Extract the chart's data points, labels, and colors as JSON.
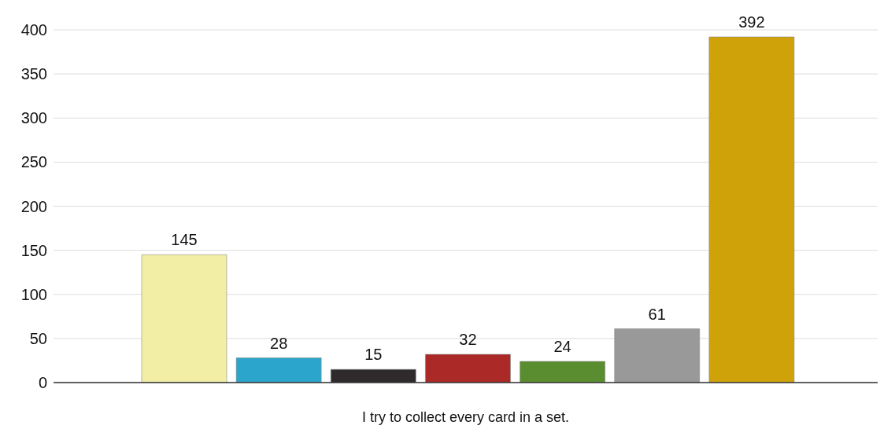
{
  "chart_data": {
    "type": "bar",
    "xlabel": "I try to collect every card in a set.",
    "categories": [
      null,
      null,
      null,
      null,
      null,
      null,
      null
    ],
    "values": [
      145,
      28,
      15,
      32,
      24,
      61,
      392
    ],
    "colors": [
      "#f3eea6",
      "#2ba5cb",
      "#2f2a2c",
      "#ab2a27",
      "#5a8d2f",
      "#999999",
      "#d0a20a"
    ],
    "ylim": [
      0,
      400
    ],
    "yticks": [
      0,
      50,
      100,
      150,
      200,
      250,
      300,
      350,
      400
    ],
    "grid": "y",
    "data_labels": true
  }
}
